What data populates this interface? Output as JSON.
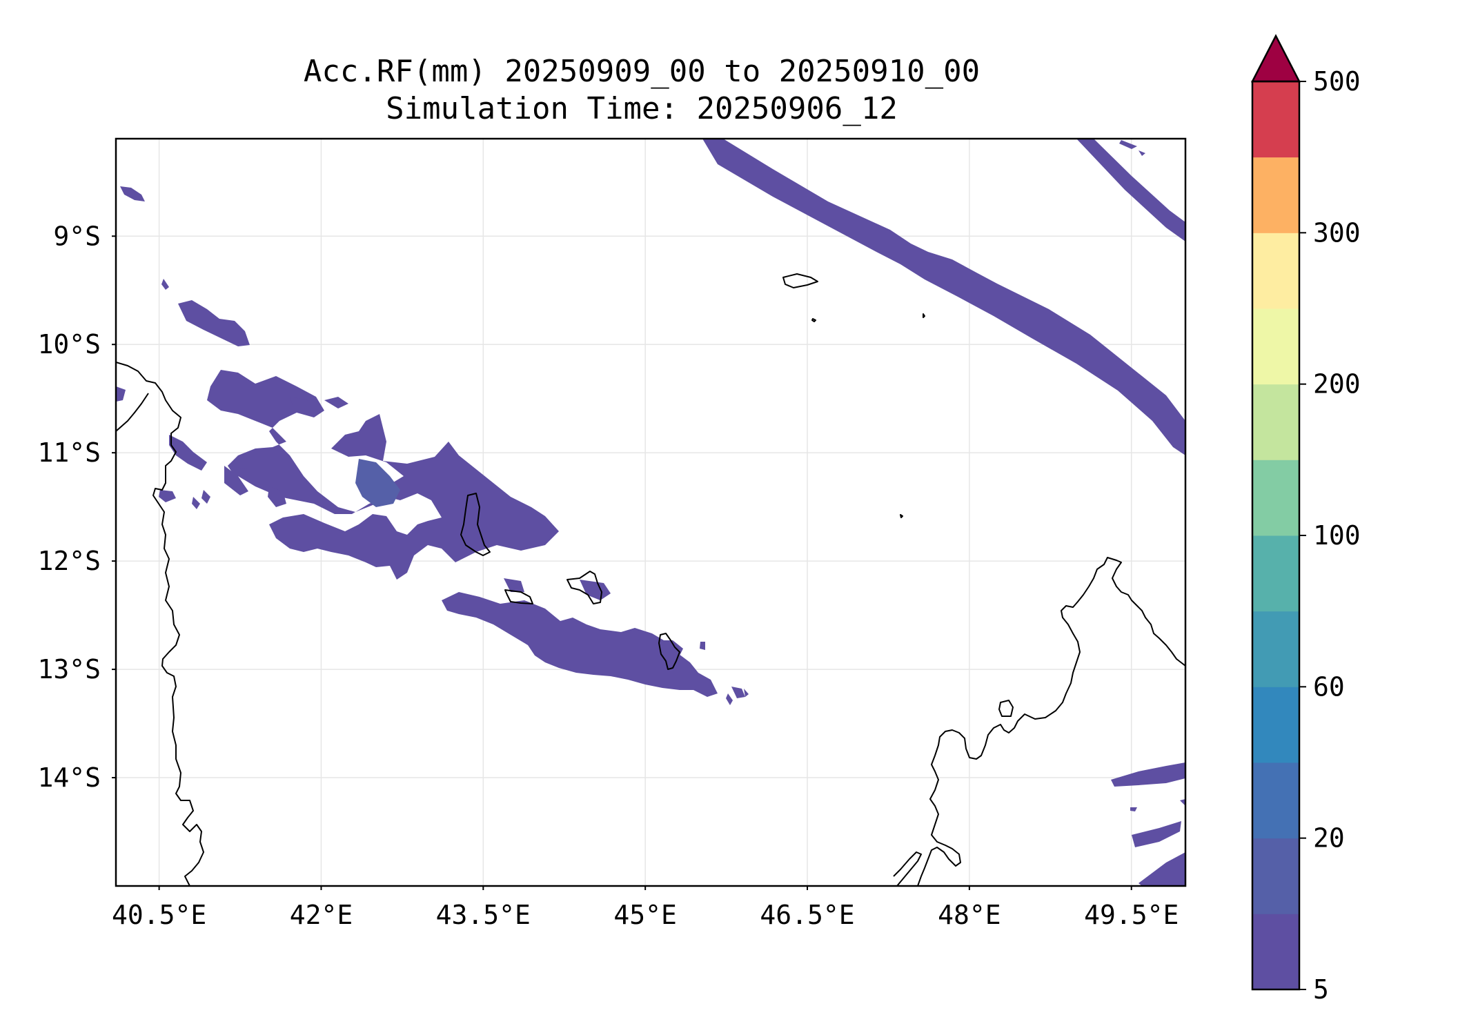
{
  "title": {
    "line1": "Acc.RF(mm) 20250909_00 to 20250910_00",
    "line2": "Simulation Time: 20250906_12"
  },
  "map": {
    "lon_range": [
      40.1,
      50.0
    ],
    "lat_range": [
      -15.0,
      -8.1
    ],
    "x_ticks": [
      {
        "value": 40.5,
        "label": "40.5°E"
      },
      {
        "value": 42.0,
        "label": "42°E"
      },
      {
        "value": 43.5,
        "label": "43.5°E"
      },
      {
        "value": 45.0,
        "label": "45°E"
      },
      {
        "value": 46.5,
        "label": "46.5°E"
      },
      {
        "value": 48.0,
        "label": "48°E"
      },
      {
        "value": 49.5,
        "label": "49.5°E"
      }
    ],
    "y_ticks": [
      {
        "value": -9,
        "label": "9°S"
      },
      {
        "value": -10,
        "label": "10°S"
      },
      {
        "value": -11,
        "label": "11°S"
      },
      {
        "value": -12,
        "label": "12°S"
      },
      {
        "value": -13,
        "label": "13°S"
      },
      {
        "value": -14,
        "label": "14°S"
      }
    ],
    "grid": true,
    "colormap": "Spectral_r"
  },
  "colorbar": {
    "extend": "max",
    "extend_color": "#9e0142",
    "levels": [
      {
        "color": "#5e4fa2"
      },
      {
        "color": "#5560a8"
      },
      {
        "color": "#4471b4"
      },
      {
        "color": "#3288bd"
      },
      {
        "color": "#429bb4"
      },
      {
        "color": "#57b1ab"
      },
      {
        "color": "#83cca4"
      },
      {
        "color": "#c4e59e"
      },
      {
        "color": "#eef7a7"
      },
      {
        "color": "#feeda1"
      },
      {
        "color": "#fdb163"
      },
      {
        "color": "#d53e4f"
      }
    ],
    "tick_labels": [
      {
        "label": "5",
        "index": 0
      },
      {
        "label": "20",
        "index": 2
      },
      {
        "label": "60",
        "index": 4
      },
      {
        "label": "100",
        "index": 6
      },
      {
        "label": "200",
        "index": 8
      },
      {
        "label": "300",
        "index": 10
      },
      {
        "label": "500",
        "index": 12
      }
    ]
  }
}
